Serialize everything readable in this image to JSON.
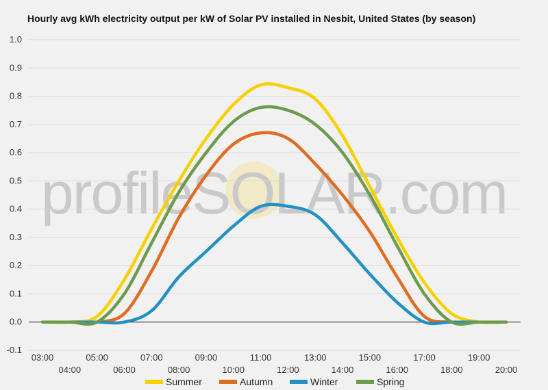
{
  "watermark": "profileSOLAR.com",
  "chart_data": {
    "type": "line",
    "title": "Hourly avg kWh electricity output per kW of Solar PV installed in Nesbit, United States (by season)",
    "xlabel": "",
    "ylabel": "",
    "x": [
      "03:00",
      "04:00",
      "05:00",
      "06:00",
      "07:00",
      "08:00",
      "09:00",
      "10:00",
      "11:00",
      "12:00",
      "13:00",
      "14:00",
      "15:00",
      "16:00",
      "17:00",
      "18:00",
      "19:00",
      "20:00"
    ],
    "ylim": [
      -0.1,
      1.0
    ],
    "yticks": [
      "-0.1",
      "0.0",
      "0.1",
      "0.2",
      "0.3",
      "0.4",
      "0.5",
      "0.6",
      "0.7",
      "0.8",
      "0.9",
      "1.0"
    ],
    "grid": true,
    "legend_position": "bottom",
    "series": [
      {
        "name": "Summer",
        "color": "#f7d000",
        "values": [
          0.0,
          0.0,
          0.02,
          0.15,
          0.33,
          0.5,
          0.65,
          0.77,
          0.84,
          0.83,
          0.79,
          0.66,
          0.48,
          0.3,
          0.14,
          0.03,
          0.0,
          0.0
        ]
      },
      {
        "name": "Autumn",
        "color": "#e06c1f",
        "values": [
          0.0,
          0.0,
          0.0,
          0.03,
          0.18,
          0.37,
          0.52,
          0.63,
          0.67,
          0.65,
          0.56,
          0.45,
          0.32,
          0.16,
          0.02,
          0.0,
          0.0,
          0.0
        ]
      },
      {
        "name": "Winter",
        "color": "#2191c1",
        "values": [
          0.0,
          0.0,
          0.0,
          0.0,
          0.04,
          0.16,
          0.25,
          0.34,
          0.41,
          0.41,
          0.38,
          0.28,
          0.17,
          0.07,
          0.0,
          0.0,
          0.0,
          0.0
        ]
      },
      {
        "name": "Spring",
        "color": "#6e9a4d",
        "values": [
          0.0,
          0.0,
          0.0,
          0.1,
          0.28,
          0.46,
          0.6,
          0.71,
          0.76,
          0.75,
          0.7,
          0.6,
          0.45,
          0.27,
          0.1,
          0.0,
          0.0,
          0.0
        ]
      }
    ]
  }
}
